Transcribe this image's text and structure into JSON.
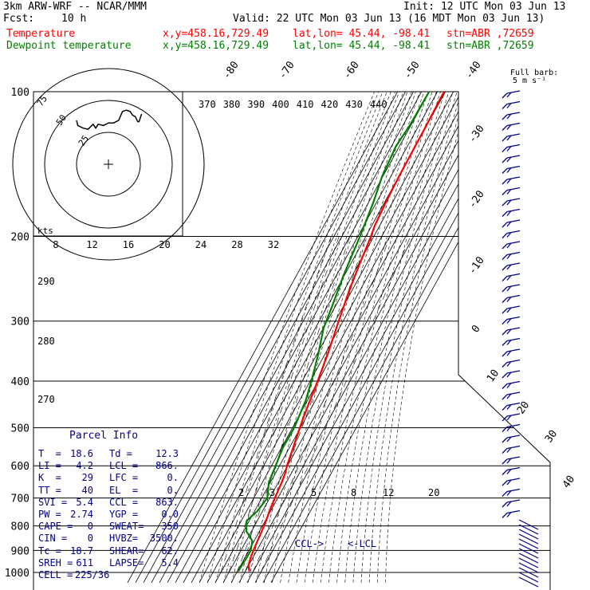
{
  "header": {
    "model": "3km ARW-WRF -- NCAR/MMM",
    "init": "Init: 12 UTC Mon 03 Jun 13",
    "fcst_label": "Fcst:",
    "fcst_value": "10 h",
    "valid": "Valid: 22 UTC Mon 03 Jun 13 (16 MDT Mon 03 Jun 13)",
    "line_temp": {
      "label": "Temperature",
      "xy": "x,y=458.16,729.49",
      "latlon": "lat,lon= 45.44, -98.41",
      "stn": "stn=ABR ,72659"
    },
    "line_dew": {
      "label": "Dewpoint temperature",
      "xy": "x,y=458.16,729.49",
      "latlon": "lat,lon= 45.44, -98.41",
      "stn": "stn=ABR ,72659"
    }
  },
  "barb_key": [
    "Full barb:",
    "5 m s⁻¹"
  ],
  "parcel_info": {
    "title": "Parcel Info",
    "rows": [
      [
        "T  =",
        "18.6",
        "Td =",
        "12.3"
      ],
      [
        "LI =",
        "4.2",
        "LCL =",
        "866."
      ],
      [
        "K  =",
        "29",
        "LFC =",
        "0."
      ],
      [
        "TT =",
        "40",
        "EL  =",
        "0."
      ],
      [
        "SVI =",
        "5.4",
        "CCL =",
        "863."
      ],
      [
        "PW =",
        "2.74",
        "YGP =",
        "0.0"
      ],
      [
        "CAPE =",
        "0",
        "SWEAT=",
        "350"
      ],
      [
        "CIN =",
        "0",
        "HVBZ=",
        "3500."
      ],
      [
        "Tc =",
        "18.7",
        "SHEAR=",
        "62."
      ],
      [
        "SREH =",
        "611",
        "LAPSE=",
        "5.4"
      ],
      [
        "CELL =",
        "225/36",
        "",
        ""
      ]
    ]
  },
  "chart_data": [
    {
      "type": "line",
      "subtype": "skew-T log-p sounding",
      "y_label_unit": "hPa",
      "y_scale": "log (reversed)",
      "ylim": [
        1000,
        100
      ],
      "pressure_ticks": [
        100,
        200,
        300,
        400,
        500,
        600,
        700,
        800,
        900,
        1000
      ],
      "isotherm_labels": [
        -80,
        -70,
        -60,
        -50,
        -40,
        -30,
        -20,
        -10,
        0,
        10,
        20,
        30,
        40
      ],
      "theta_labels": [
        370,
        380,
        390,
        400,
        410,
        420,
        430,
        440
      ],
      "theta_left_labels": [
        290,
        280,
        270
      ],
      "mixing_ratio_labels": [
        2,
        3,
        5,
        8,
        12,
        20
      ],
      "annotations": [
        "CCL->",
        "<-LCL"
      ],
      "series": [
        {
          "name": "Temperature",
          "color": "#ff0000",
          "points": [
            [
              995,
              25
            ],
            [
              965,
              19.5
            ],
            [
              935,
              17.5
            ],
            [
              900,
              15.6
            ],
            [
              860,
              14.2
            ],
            [
              820,
              12.9
            ],
            [
              780,
              11.0
            ],
            [
              745,
              8.6
            ],
            [
              700,
              6.4
            ],
            [
              650,
              4.3
            ],
            [
              620,
              2.1
            ],
            [
              600,
              -0.7
            ],
            [
              550,
              -5.4
            ],
            [
              500,
              -10.7
            ],
            [
              480,
              -12.9
            ],
            [
              440,
              -16.7
            ],
            [
              400,
              -20.6
            ],
            [
              350,
              -26.8
            ],
            [
              300,
              -35.6
            ],
            [
              260,
              -43.3
            ],
            [
              230,
              -48.5
            ],
            [
              200,
              -53.5
            ],
            [
              190,
              -56.2
            ],
            [
              170,
              -58.4
            ],
            [
              150,
              -59.8
            ],
            [
              130,
              -60.3
            ],
            [
              117,
              -60.6
            ],
            [
              100,
              -61.8
            ]
          ]
        },
        {
          "name": "Dewpoint temperature",
          "color": "#008000",
          "points": [
            [
              995,
              11
            ],
            [
              965,
              11.5
            ],
            [
              935,
              12.1
            ],
            [
              900,
              12.3
            ],
            [
              860,
              7.8
            ],
            [
              820,
              -6.7
            ],
            [
              780,
              -13.3
            ],
            [
              745,
              -6.4
            ],
            [
              700,
              -3.2
            ],
            [
              650,
              -11.8
            ],
            [
              600,
              -14.9
            ],
            [
              550,
              -18.3
            ],
            [
              500,
              -17.8
            ],
            [
              480,
              -19.2
            ],
            [
              440,
              -22.0
            ],
            [
              400,
              -28.4
            ],
            [
              350,
              -38.8
            ],
            [
              310,
              -49.8
            ],
            [
              280,
              -54.0
            ],
            [
              240,
              -61.3
            ],
            [
              200,
              -67.3
            ],
            [
              170,
              -74.0
            ],
            [
              150,
              -80.9
            ],
            [
              130,
              -84.4
            ],
            [
              117,
              -81.3
            ],
            [
              100,
              -80.5
            ]
          ]
        }
      ]
    },
    {
      "type": "line",
      "subtype": "hodograph",
      "speed_unit": "kts",
      "ring_labels": [
        25,
        50,
        75
      ],
      "x_tick_labels": [
        8,
        12,
        16,
        20,
        24,
        28,
        32
      ],
      "series": [
        {
          "name": "hodograph",
          "color": "#000000",
          "points": [
            [
              5,
              15
            ],
            [
              6,
              19
            ],
            [
              10,
              21
            ],
            [
              14,
              22
            ],
            [
              18,
              18
            ],
            [
              20,
              21
            ],
            [
              22,
              18
            ],
            [
              26,
              19
            ],
            [
              30,
              17
            ],
            [
              34,
              17
            ],
            [
              38,
              15
            ],
            [
              41,
              8
            ],
            [
              44,
              7
            ],
            [
              47,
              8
            ],
            [
              49,
              11
            ],
            [
              51,
              12
            ],
            [
              53,
              16
            ],
            [
              54,
              16
            ],
            [
              56,
              10
            ]
          ]
        }
      ]
    }
  ]
}
